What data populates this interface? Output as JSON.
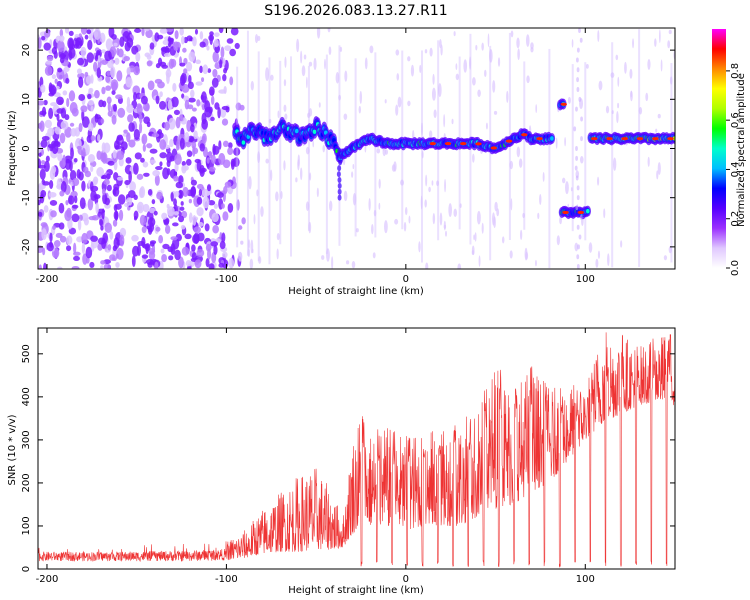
{
  "title": "S196.2026.083.13.27.R11",
  "chart_data": [
    {
      "type": "heatmap",
      "name": "spectrogram",
      "xlabel": "Height of straight line (km)",
      "ylabel": "Frequency (Hz)",
      "xlim": [
        -205,
        150
      ],
      "ylim": [
        -24.5,
        24.5
      ],
      "xticks": [
        -200,
        -100,
        0,
        100
      ],
      "yticks": [
        20,
        10,
        0,
        -10,
        -20
      ],
      "ridge": {
        "x": [
          -95,
          -90,
          -85,
          -80,
          -75,
          -70,
          -65,
          -60,
          -55,
          -50,
          -45,
          -40,
          -37,
          -35,
          -30,
          -25,
          -20,
          -10,
          0,
          10,
          20,
          30,
          40,
          50,
          55,
          60,
          65,
          70,
          75,
          80
        ],
        "y": [
          3,
          2,
          4,
          3,
          2,
          4,
          3,
          3,
          2,
          4,
          3,
          1,
          -2,
          -1,
          0,
          1,
          2,
          1,
          1,
          1,
          1,
          1,
          1,
          0,
          1,
          2,
          3,
          2,
          2,
          2
        ]
      },
      "ridge_segments": [
        {
          "x": [
            86,
            88
          ],
          "y": [
            9,
            9
          ]
        },
        {
          "x": [
            87,
            102
          ],
          "y": [
            -13,
            -13
          ]
        },
        {
          "x": [
            103,
            150
          ],
          "y": [
            2,
            2
          ]
        }
      ],
      "colorbar": {
        "label": "Normalized spectral amplitude",
        "ticks": [
          "0.0",
          "0.2",
          "0.4",
          "0.6",
          "0.8"
        ],
        "tick_values": [
          0.0,
          0.2,
          0.4,
          0.6,
          0.8
        ],
        "range": [
          0,
          0.97
        ],
        "colors": [
          "#ffffff",
          "#e0c8ff",
          "#9b30ff",
          "#5500ff",
          "#0000ff",
          "#00bfff",
          "#00ffcc",
          "#00ff00",
          "#b0ff00",
          "#ffff00",
          "#ff8800",
          "#ff0000",
          "#ff00ff"
        ]
      }
    },
    {
      "type": "line",
      "name": "snr",
      "xlabel": "Height of straight line (km)",
      "ylabel": "SNR (10 * v/v)",
      "xlim": [
        -205,
        150
      ],
      "ylim": [
        0,
        560
      ],
      "xticks": [
        -200,
        -100,
        0,
        100
      ],
      "yticks": [
        0,
        100,
        200,
        300,
        400,
        500
      ],
      "color": "#ee3333",
      "envelope": {
        "x": [
          -205,
          -160,
          -120,
          -100,
          -90,
          -80,
          -70,
          -60,
          -50,
          -40,
          -35,
          -30,
          -25,
          -20,
          -10,
          0,
          10,
          20,
          30,
          40,
          50,
          60,
          70,
          80,
          90,
          100,
          110,
          120,
          130,
          140,
          150
        ],
        "lo": [
          18,
          18,
          18,
          20,
          25,
          35,
          40,
          40,
          45,
          45,
          50,
          80,
          100,
          100,
          100,
          90,
          100,
          100,
          100,
          120,
          140,
          150,
          180,
          200,
          250,
          300,
          340,
          360,
          380,
          390,
          380
        ],
        "hi": [
          55,
          55,
          60,
          65,
          90,
          140,
          180,
          220,
          240,
          170,
          120,
          300,
          380,
          320,
          330,
          310,
          330,
          320,
          350,
          370,
          490,
          420,
          480,
          420,
          430,
          430,
          560,
          550,
          520,
          540,
          560
        ]
      },
      "dropouts_from": -25,
      "dropout_spacing_km": 8.5
    }
  ]
}
